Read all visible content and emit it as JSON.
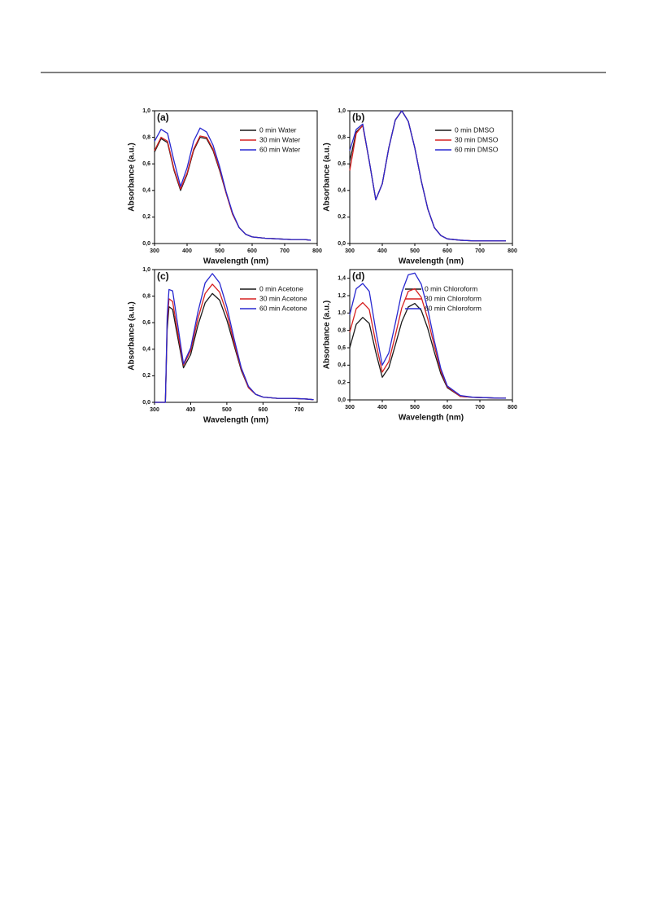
{
  "chart_data": [
    {
      "type": "line",
      "annotation": "(a)",
      "xlabel": "Wavelength (nm)",
      "ylabel": "Absorbance (a.u.)",
      "x": [
        300,
        320,
        340,
        360,
        380,
        400,
        420,
        440,
        460,
        480,
        500,
        520,
        540,
        560,
        580,
        600,
        640,
        680,
        720,
        760,
        780
      ],
      "series": [
        {
          "name": "0 min Water",
          "color": "#1a1a1a",
          "values": [
            0.69,
            0.79,
            0.76,
            0.55,
            0.4,
            0.52,
            0.7,
            0.8,
            0.79,
            0.7,
            0.55,
            0.38,
            0.22,
            0.12,
            0.07,
            0.05,
            0.04,
            0.035,
            0.03,
            0.03,
            0.025
          ]
        },
        {
          "name": "30 min Water",
          "color": "#d62020",
          "values": [
            0.7,
            0.8,
            0.77,
            0.56,
            0.41,
            0.53,
            0.71,
            0.81,
            0.8,
            0.71,
            0.56,
            0.38,
            0.22,
            0.12,
            0.07,
            0.05,
            0.04,
            0.035,
            0.03,
            0.03,
            0.025
          ]
        },
        {
          "name": "60 min Water",
          "color": "#2828d0",
          "values": [
            0.77,
            0.86,
            0.83,
            0.62,
            0.43,
            0.57,
            0.77,
            0.87,
            0.84,
            0.74,
            0.58,
            0.39,
            0.23,
            0.12,
            0.07,
            0.05,
            0.04,
            0.035,
            0.03,
            0.03,
            0.025
          ]
        }
      ],
      "xlim": [
        300,
        800
      ],
      "xticks": [
        300,
        400,
        500,
        600,
        700,
        800
      ],
      "ylim": [
        0,
        1
      ],
      "yticks": [
        {
          "value": 0,
          "label": "0,0"
        },
        {
          "value": 0.2,
          "label": "0,2"
        },
        {
          "value": 0.4,
          "label": "0,4"
        },
        {
          "value": 0.6,
          "label": "0,6"
        },
        {
          "value": 0.8,
          "label": "0,8"
        },
        {
          "value": 1,
          "label": "1,0"
        }
      ],
      "legend": "upper right"
    },
    {
      "type": "line",
      "annotation": "(b)",
      "xlabel": "Wavelength (nm)",
      "ylabel": "Absorbance (a.u.)",
      "x": [
        300,
        320,
        340,
        360,
        380,
        400,
        420,
        440,
        460,
        480,
        500,
        520,
        540,
        560,
        580,
        600,
        640,
        680,
        720,
        760,
        780
      ],
      "series": [
        {
          "name": "0 min DMSO",
          "color": "#1a1a1a",
          "values": [
            0.62,
            0.84,
            0.89,
            0.62,
            0.33,
            0.45,
            0.72,
            0.93,
            1.0,
            0.92,
            0.72,
            0.47,
            0.26,
            0.12,
            0.06,
            0.035,
            0.025,
            0.02,
            0.02,
            0.02,
            0.02
          ]
        },
        {
          "name": "30 min DMSO",
          "color": "#d62020",
          "values": [
            0.55,
            0.83,
            0.89,
            0.62,
            0.33,
            0.45,
            0.72,
            0.93,
            1.0,
            0.92,
            0.72,
            0.47,
            0.26,
            0.12,
            0.06,
            0.035,
            0.025,
            0.02,
            0.02,
            0.02,
            0.02
          ]
        },
        {
          "name": "60 min DMSO",
          "color": "#2828d0",
          "values": [
            0.7,
            0.86,
            0.9,
            0.62,
            0.33,
            0.45,
            0.72,
            0.93,
            1.0,
            0.92,
            0.72,
            0.47,
            0.26,
            0.12,
            0.06,
            0.035,
            0.025,
            0.02,
            0.02,
            0.02,
            0.02
          ]
        }
      ],
      "xlim": [
        300,
        800
      ],
      "xticks": [
        300,
        400,
        500,
        600,
        700,
        800
      ],
      "ylim": [
        0,
        1
      ],
      "yticks": [
        {
          "value": 0,
          "label": "0,0"
        },
        {
          "value": 0.2,
          "label": "0,2"
        },
        {
          "value": 0.4,
          "label": "0,4"
        },
        {
          "value": 0.6,
          "label": "0,6"
        },
        {
          "value": 0.8,
          "label": "0,8"
        },
        {
          "value": 1,
          "label": "1,0"
        }
      ],
      "legend": "upper right"
    },
    {
      "type": "line",
      "annotation": "(c)",
      "xlabel": "Wavelength (nm)",
      "ylabel": "Absorbance (a.u.)",
      "x": [
        300,
        320,
        330,
        335,
        340,
        350,
        360,
        380,
        400,
        420,
        440,
        460,
        480,
        500,
        520,
        540,
        560,
        580,
        600,
        640,
        680,
        720,
        740
      ],
      "series": [
        {
          "name": "0 min Acetone",
          "color": "#1a1a1a",
          "values": [
            0,
            0,
            0,
            0.55,
            0.72,
            0.7,
            0.55,
            0.26,
            0.36,
            0.58,
            0.75,
            0.82,
            0.77,
            0.62,
            0.43,
            0.24,
            0.11,
            0.06,
            0.04,
            0.03,
            0.03,
            0.025,
            0.02
          ]
        },
        {
          "name": "30 min Acetone",
          "color": "#d62020",
          "values": [
            0,
            0,
            0,
            0.6,
            0.78,
            0.76,
            0.59,
            0.28,
            0.39,
            0.63,
            0.82,
            0.89,
            0.83,
            0.67,
            0.45,
            0.25,
            0.11,
            0.06,
            0.04,
            0.03,
            0.03,
            0.025,
            0.02
          ]
        },
        {
          "name": "60 min Acetone",
          "color": "#2828d0",
          "values": [
            0,
            0,
            0,
            0.65,
            0.85,
            0.84,
            0.66,
            0.29,
            0.41,
            0.68,
            0.9,
            0.97,
            0.9,
            0.72,
            0.48,
            0.26,
            0.12,
            0.06,
            0.04,
            0.03,
            0.03,
            0.025,
            0.02
          ]
        }
      ],
      "xlim": [
        300,
        750
      ],
      "xticks": [
        300,
        400,
        500,
        600,
        700
      ],
      "ylim": [
        0,
        1
      ],
      "yticks": [
        {
          "value": 0,
          "label": "0,0"
        },
        {
          "value": 0.2,
          "label": "0,2"
        },
        {
          "value": 0.4,
          "label": "0,4"
        },
        {
          "value": 0.6,
          "label": "0,6"
        },
        {
          "value": 0.8,
          "label": "0,8"
        },
        {
          "value": 1,
          "label": "1,0"
        }
      ],
      "legend": "upper right"
    },
    {
      "type": "line",
      "annotation": "(d)",
      "xlabel": "Wavelength (nm)",
      "ylabel": "Absorbance (a.u.)",
      "x": [
        300,
        320,
        340,
        360,
        380,
        400,
        420,
        440,
        460,
        480,
        500,
        520,
        540,
        560,
        580,
        600,
        640,
        680,
        720,
        760,
        780
      ],
      "series": [
        {
          "name": "0 min Chloroform",
          "color": "#1a1a1a",
          "values": [
            0.6,
            0.87,
            0.95,
            0.88,
            0.55,
            0.26,
            0.37,
            0.63,
            0.9,
            1.07,
            1.11,
            1.03,
            0.82,
            0.55,
            0.3,
            0.14,
            0.04,
            0.03,
            0.025,
            0.02,
            0.02
          ]
        },
        {
          "name": "30 min Chloroform",
          "color": "#d62020",
          "values": [
            0.78,
            1.05,
            1.12,
            1.04,
            0.66,
            0.32,
            0.44,
            0.74,
            1.06,
            1.25,
            1.28,
            1.18,
            0.93,
            0.62,
            0.33,
            0.15,
            0.04,
            0.03,
            0.025,
            0.02,
            0.02
          ]
        },
        {
          "name": "60 min Chloroform",
          "color": "#2828d0",
          "values": [
            0.98,
            1.28,
            1.34,
            1.25,
            0.8,
            0.4,
            0.54,
            0.88,
            1.24,
            1.44,
            1.46,
            1.33,
            1.04,
            0.68,
            0.36,
            0.16,
            0.05,
            0.03,
            0.025,
            0.02,
            0.02
          ]
        }
      ],
      "xlim": [
        300,
        800
      ],
      "xticks": [
        300,
        400,
        500,
        600,
        700,
        800
      ],
      "ylim": [
        0,
        1.5
      ],
      "yticks": [
        {
          "value": 0,
          "label": "0,0"
        },
        {
          "value": 0.2,
          "label": "0,2"
        },
        {
          "value": 0.4,
          "label": "0,4"
        },
        {
          "value": 0.6,
          "label": "0,6"
        },
        {
          "value": 0.8,
          "label": "0,8"
        },
        {
          "value": 1,
          "label": "1,0"
        },
        {
          "value": 1.2,
          "label": "1,2"
        },
        {
          "value": 1.4,
          "label": "1,4"
        }
      ],
      "legend": "upper right"
    }
  ]
}
